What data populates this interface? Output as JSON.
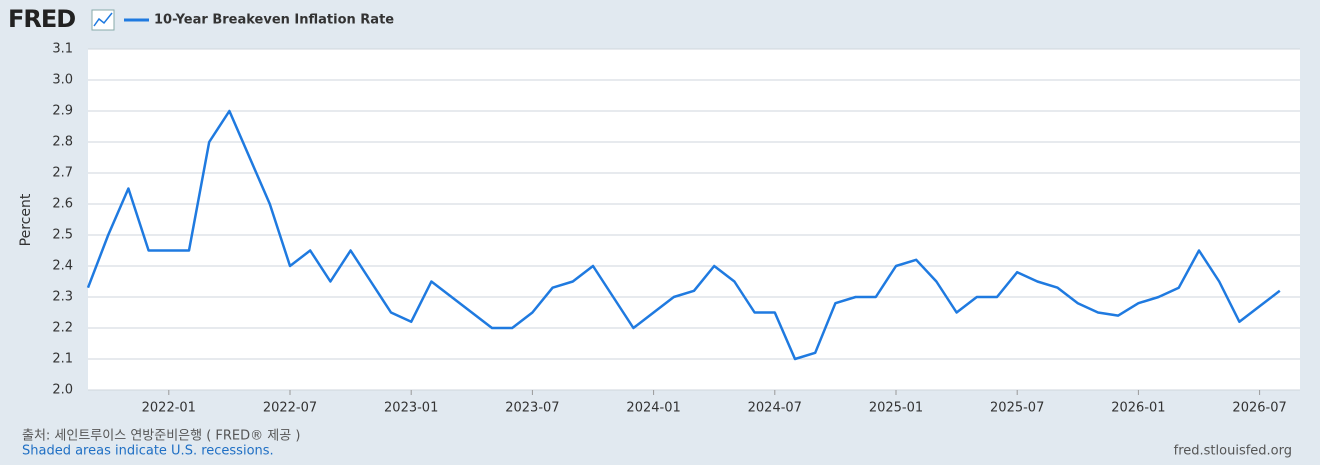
{
  "chart_data": {
    "type": "line",
    "logo": "FRED",
    "ylabel": "Percent",
    "source": "출처: 세인트루이스 연방준비은행 ( FRED® 제공 )",
    "note": "Shaded areas indicate U.S. recessions.",
    "url": "fred.stlouisfed.org",
    "x": [
      "2021-09",
      "2021-10",
      "2021-11",
      "2021-12",
      "2022-01",
      "2022-02",
      "2022-03",
      "2022-04",
      "2022-05",
      "2022-06",
      "2022-07",
      "2022-08",
      "2022-09",
      "2022-10",
      "2022-11",
      "2022-12",
      "2023-01",
      "2023-02",
      "2023-03",
      "2023-04",
      "2023-05",
      "2023-06",
      "2023-07",
      "2023-08",
      "2023-09",
      "2023-10",
      "2023-11",
      "2023-12",
      "2024-01",
      "2024-02",
      "2024-03",
      "2024-04",
      "2024-05",
      "2024-06",
      "2024-07",
      "2024-08",
      "2024-09",
      "2024-10",
      "2024-11",
      "2024-12",
      "2025-01",
      "2025-02",
      "2025-03",
      "2025-04",
      "2025-05",
      "2025-06",
      "2025-07",
      "2025-08",
      "2025-09",
      "2025-10",
      "2025-11",
      "2025-12",
      "2026-01",
      "2026-02",
      "2026-03",
      "2026-04",
      "2026-05",
      "2026-06",
      "2026-07",
      "2026-08"
    ],
    "series": [
      {
        "name": "10-Year Breakeven Inflation Rate",
        "color": "#1f7ae0",
        "values": [
          2.33,
          2.5,
          2.65,
          2.45,
          2.45,
          2.45,
          2.8,
          2.9,
          2.75,
          2.6,
          2.4,
          2.45,
          2.35,
          2.45,
          2.35,
          2.25,
          2.22,
          2.35,
          2.3,
          2.25,
          2.2,
          2.2,
          2.25,
          2.33,
          2.35,
          2.4,
          2.3,
          2.2,
          2.25,
          2.3,
          2.32,
          2.4,
          2.35,
          2.25,
          2.25,
          2.1,
          2.12,
          2.28,
          2.3,
          2.3,
          2.4,
          2.42,
          2.35,
          2.25,
          2.3,
          2.3,
          2.38,
          2.35,
          2.33,
          2.28,
          2.25,
          2.24,
          2.28,
          2.3,
          2.33,
          2.45,
          2.35,
          2.22,
          2.27,
          2.32
        ]
      }
    ],
    "xlim": [
      "2021-09",
      "2026-09"
    ],
    "xticks": [
      "2022-01",
      "2022-07",
      "2023-01",
      "2023-07",
      "2024-01",
      "2024-07",
      "2025-01",
      "2025-07",
      "2026-01",
      "2026-07"
    ],
    "ylim": [
      2.0,
      3.1
    ],
    "yticks": [
      {
        "value": 2,
        "label": "2.0"
      },
      2.1,
      2.2,
      2.3,
      2.4,
      2.5,
      2.6,
      2.7,
      2.8,
      2.9,
      {
        "value": 3,
        "label": "3.0"
      },
      3.1
    ],
    "grid": true
  }
}
